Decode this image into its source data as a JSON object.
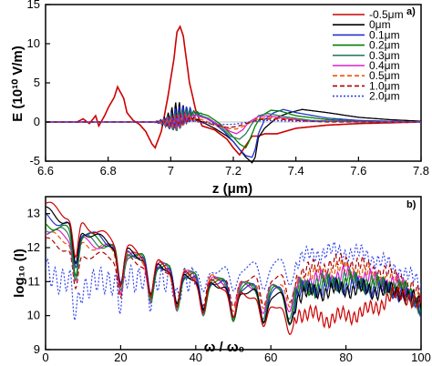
{
  "chart_data": [
    {
      "panel_label": "a)",
      "type": "line",
      "ylabel": "E (10¹⁰ V/m)",
      "xlabel": "z (μm)",
      "xlim": [
        6.6,
        7.8
      ],
      "ylim": [
        -5,
        15
      ],
      "xticks": [
        "6.6",
        "6.8",
        "7",
        "7.2",
        "7.4",
        "7.6",
        "7.8"
      ],
      "yticks": [
        "-5",
        "0",
        "5",
        "10",
        "15"
      ],
      "legend_position": "top-right",
      "series": [
        {
          "name": "-0.5μm",
          "color": "#cc0000",
          "style": "solid",
          "points": [
            [
              6.6,
              0
            ],
            [
              6.7,
              0
            ],
            [
              6.72,
              0.4
            ],
            [
              6.74,
              -0.2
            ],
            [
              6.76,
              0.8
            ],
            [
              6.77,
              -0.5
            ],
            [
              6.79,
              0.9
            ],
            [
              6.8,
              1.8
            ],
            [
              6.82,
              3.2
            ],
            [
              6.83,
              4.5
            ],
            [
              6.85,
              3.0
            ],
            [
              6.86,
              1.2
            ],
            [
              6.88,
              0.2
            ],
            [
              6.9,
              -0.3
            ],
            [
              6.92,
              -1.2
            ],
            [
              6.94,
              -2.8
            ],
            [
              6.95,
              -3.3
            ],
            [
              6.97,
              -1.2
            ],
            [
              6.99,
              3.0
            ],
            [
              7.01,
              8.0
            ],
            [
              7.02,
              11.5
            ],
            [
              7.03,
              12.2
            ],
            [
              7.04,
              11.0
            ],
            [
              7.06,
              5.0
            ],
            [
              7.08,
              1.5
            ],
            [
              7.1,
              -0.5
            ],
            [
              7.14,
              -1.0
            ],
            [
              7.18,
              -2.2
            ],
            [
              7.2,
              -3.3
            ],
            [
              7.22,
              -4.2
            ],
            [
              7.24,
              -3.0
            ],
            [
              7.26,
              -1.8
            ],
            [
              7.28,
              -1.8
            ],
            [
              7.3,
              -1.5
            ],
            [
              7.34,
              -1.5
            ],
            [
              7.4,
              -0.8
            ],
            [
              7.5,
              -0.4
            ],
            [
              7.6,
              -0.2
            ],
            [
              7.7,
              -0.1
            ],
            [
              7.8,
              0
            ]
          ]
        },
        {
          "name": "0μm",
          "color": "#000000",
          "style": "solid",
          "points": [
            [
              6.6,
              0
            ],
            [
              6.98,
              0
            ],
            [
              7.0,
              0.5
            ],
            [
              7.02,
              1.2
            ],
            [
              7.04,
              1.0
            ],
            [
              7.07,
              0.6
            ],
            [
              7.1,
              0
            ],
            [
              7.14,
              -0.8
            ],
            [
              7.18,
              -1.8
            ],
            [
              7.2,
              -2.5
            ],
            [
              7.22,
              -3.5
            ],
            [
              7.24,
              -4.5
            ],
            [
              7.26,
              -5.2
            ],
            [
              7.27,
              -4.5
            ],
            [
              7.28,
              -2.0
            ],
            [
              7.3,
              -0.8
            ],
            [
              7.34,
              0.6
            ],
            [
              7.38,
              1.2
            ],
            [
              7.42,
              1.6
            ],
            [
              7.5,
              1.2
            ],
            [
              7.6,
              0.6
            ],
            [
              7.7,
              0.3
            ],
            [
              7.8,
              0.1
            ]
          ]
        },
        {
          "name": "0.1μm",
          "color": "#2233cc",
          "style": "solid",
          "points": [
            [
              6.6,
              0
            ],
            [
              7.0,
              0
            ],
            [
              7.03,
              0.8
            ],
            [
              7.06,
              1.4
            ],
            [
              7.09,
              1.0
            ],
            [
              7.13,
              0.1
            ],
            [
              7.17,
              -1.2
            ],
            [
              7.2,
              -2.5
            ],
            [
              7.22,
              -3.5
            ],
            [
              7.24,
              -4.3
            ],
            [
              7.26,
              -4.5
            ],
            [
              7.27,
              -3.5
            ],
            [
              7.28,
              -1.5
            ],
            [
              7.3,
              0.3
            ],
            [
              7.33,
              1.2
            ],
            [
              7.36,
              1.6
            ],
            [
              7.4,
              1.2
            ],
            [
              7.5,
              0.5
            ],
            [
              7.6,
              0.2
            ],
            [
              7.8,
              0
            ]
          ]
        },
        {
          "name": "0.2μm",
          "color": "#008000",
          "style": "solid",
          "points": [
            [
              6.6,
              0
            ],
            [
              7.02,
              0
            ],
            [
              7.05,
              0.8
            ],
            [
              7.08,
              1.3
            ],
            [
              7.12,
              0.8
            ],
            [
              7.16,
              -0.3
            ],
            [
              7.19,
              -1.5
            ],
            [
              7.22,
              -2.8
            ],
            [
              7.24,
              -3.3
            ],
            [
              7.25,
              -2.5
            ],
            [
              7.27,
              -0.5
            ],
            [
              7.29,
              0.8
            ],
            [
              7.32,
              1.5
            ],
            [
              7.35,
              1.4
            ],
            [
              7.4,
              0.8
            ],
            [
              7.5,
              0.3
            ],
            [
              7.6,
              0.1
            ],
            [
              7.8,
              0
            ]
          ]
        },
        {
          "name": "0.3μm",
          "color": "#2a8060",
          "style": "solid",
          "points": [
            [
              6.6,
              0
            ],
            [
              7.02,
              0
            ],
            [
              7.05,
              0.6
            ],
            [
              7.08,
              1.0
            ],
            [
              7.12,
              0.5
            ],
            [
              7.16,
              -0.6
            ],
            [
              7.19,
              -1.8
            ],
            [
              7.22,
              -2.2
            ],
            [
              7.24,
              -1.5
            ],
            [
              7.26,
              -0.2
            ],
            [
              7.28,
              0.8
            ],
            [
              7.31,
              1.1
            ],
            [
              7.36,
              0.7
            ],
            [
              7.45,
              0.2
            ],
            [
              7.6,
              0
            ],
            [
              7.8,
              0
            ]
          ]
        },
        {
          "name": "0.4μm",
          "color": "#dd22cc",
          "style": "solid",
          "points": [
            [
              6.6,
              0
            ],
            [
              7.02,
              0
            ],
            [
              7.05,
              0.5
            ],
            [
              7.08,
              0.8
            ],
            [
              7.12,
              0.4
            ],
            [
              7.16,
              -0.5
            ],
            [
              7.19,
              -1.2
            ],
            [
              7.21,
              -1.5
            ],
            [
              7.23,
              -1.0
            ],
            [
              7.25,
              0
            ],
            [
              7.28,
              0.7
            ],
            [
              7.31,
              0.8
            ],
            [
              7.36,
              0.5
            ],
            [
              7.45,
              0.1
            ],
            [
              7.8,
              0
            ]
          ]
        },
        {
          "name": "0.5μm",
          "color": "#ee5500",
          "style": "dashed",
          "points": [
            [
              6.6,
              0
            ],
            [
              7.02,
              0
            ],
            [
              7.06,
              0.5
            ],
            [
              7.1,
              0.3
            ],
            [
              7.14,
              -0.3
            ],
            [
              7.18,
              -0.8
            ],
            [
              7.21,
              -0.9
            ],
            [
              7.24,
              -0.4
            ],
            [
              7.27,
              0.3
            ],
            [
              7.31,
              0.6
            ],
            [
              7.36,
              0.4
            ],
            [
              7.45,
              0.1
            ],
            [
              7.8,
              0
            ]
          ]
        },
        {
          "name": "1.0μm",
          "color": "#aa0000",
          "style": "dashed",
          "points": [
            [
              6.6,
              0
            ],
            [
              7.02,
              0
            ],
            [
              7.06,
              0.3
            ],
            [
              7.1,
              0.1
            ],
            [
              7.14,
              -0.4
            ],
            [
              7.18,
              -0.7
            ],
            [
              7.21,
              -0.6
            ],
            [
              7.24,
              -0.2
            ],
            [
              7.28,
              0.3
            ],
            [
              7.33,
              0.4
            ],
            [
              7.4,
              0.2
            ],
            [
              7.5,
              0
            ],
            [
              7.8,
              0
            ]
          ]
        },
        {
          "name": "2.0μm",
          "color": "#3344ee",
          "style": "dotted",
          "points": [
            [
              6.6,
              0
            ],
            [
              7.02,
              0
            ],
            [
              7.06,
              0.2
            ],
            [
              7.1,
              -0.1
            ],
            [
              7.15,
              -0.3
            ],
            [
              7.2,
              -0.3
            ],
            [
              7.25,
              0
            ],
            [
              7.3,
              0.2
            ],
            [
              7.4,
              0.1
            ],
            [
              7.8,
              0
            ]
          ]
        }
      ]
    },
    {
      "panel_label": "b)",
      "type": "line",
      "ylabel": "log₁₀ (I)",
      "xlabel": "ω / ω₀",
      "xlim": [
        0,
        100
      ],
      "ylim": [
        9,
        13.5
      ],
      "xticks": [
        "0",
        "20",
        "40",
        "60",
        "80",
        "100"
      ],
      "yticks": [
        "9",
        "10",
        "11",
        "12",
        "13"
      ],
      "series": [
        {
          "name": "-0.5μm",
          "color": "#cc0000",
          "base": [
            [
              0,
              13.3
            ],
            [
              10,
              12.7
            ],
            [
              20,
              12.1
            ],
            [
              35,
              11.3
            ],
            [
              50,
              10.8
            ],
            [
              65,
              10.2
            ],
            [
              75,
              9.9
            ],
            [
              85,
              10.1
            ],
            [
              95,
              10.7
            ],
            [
              100,
              10.2
            ]
          ]
        },
        {
          "name": "0μm",
          "color": "#000000",
          "base": [
            [
              0,
              13.1
            ],
            [
              10,
              12.5
            ],
            [
              20,
              12.0
            ],
            [
              35,
              11.3
            ],
            [
              50,
              10.8
            ],
            [
              65,
              10.6
            ],
            [
              80,
              10.8
            ],
            [
              95,
              10.7
            ],
            [
              100,
              10.3
            ]
          ]
        },
        {
          "name": "0.1μm",
          "color": "#2233cc",
          "base": [
            [
              0,
              12.9
            ],
            [
              10,
              12.5
            ],
            [
              20,
              12.0
            ],
            [
              35,
              11.3
            ],
            [
              50,
              10.9
            ],
            [
              65,
              10.7
            ],
            [
              80,
              10.9
            ],
            [
              95,
              10.7
            ],
            [
              100,
              10.2
            ]
          ]
        },
        {
          "name": "0.2μm",
          "color": "#008000",
          "base": [
            [
              0,
              12.7
            ],
            [
              10,
              12.4
            ],
            [
              20,
              12.0
            ],
            [
              35,
              11.3
            ],
            [
              50,
              10.9
            ],
            [
              65,
              10.7
            ],
            [
              80,
              11.0
            ],
            [
              95,
              10.8
            ],
            [
              100,
              10.3
            ]
          ]
        },
        {
          "name": "0.3μm",
          "color": "#2a8060",
          "base": [
            [
              0,
              12.6
            ],
            [
              10,
              12.3
            ],
            [
              20,
              11.9
            ],
            [
              35,
              11.3
            ],
            [
              50,
              10.9
            ],
            [
              65,
              10.8
            ],
            [
              80,
              11.1
            ],
            [
              95,
              10.8
            ],
            [
              100,
              10.3
            ]
          ]
        },
        {
          "name": "0.4μm",
          "color": "#dd22cc",
          "base": [
            [
              0,
              12.5
            ],
            [
              10,
              12.2
            ],
            [
              20,
              11.9
            ],
            [
              35,
              11.3
            ],
            [
              50,
              10.9
            ],
            [
              65,
              10.9
            ],
            [
              80,
              11.2
            ],
            [
              95,
              10.9
            ],
            [
              100,
              10.3
            ]
          ]
        },
        {
          "name": "0.5μm",
          "color": "#ee5500",
          "base": [
            [
              0,
              12.4
            ],
            [
              10,
              12.1
            ],
            [
              20,
              11.9
            ],
            [
              35,
              11.3
            ],
            [
              50,
              11.0
            ],
            [
              65,
              11.0
            ],
            [
              80,
              11.4
            ],
            [
              95,
              10.9
            ],
            [
              100,
              10.4
            ]
          ]
        },
        {
          "name": "1.0μm",
          "color": "#aa0000",
          "base": [
            [
              0,
              12.2
            ],
            [
              10,
              11.8
            ],
            [
              20,
              11.7
            ],
            [
              35,
              11.3
            ],
            [
              50,
              11.1
            ],
            [
              65,
              11.2
            ],
            [
              80,
              11.6
            ],
            [
              95,
              11.1
            ],
            [
              100,
              10.5
            ]
          ]
        },
        {
          "name": "2.0μm",
          "color": "#3344ee",
          "base": [
            [
              0,
              11.4
            ],
            [
              10,
              11.0
            ],
            [
              20,
              11.3
            ],
            [
              35,
              11.3
            ],
            [
              50,
              11.4
            ],
            [
              65,
              11.6
            ],
            [
              75,
              11.9
            ],
            [
              85,
              11.8
            ],
            [
              95,
              11.3
            ],
            [
              100,
              10.9
            ]
          ]
        }
      ]
    }
  ]
}
